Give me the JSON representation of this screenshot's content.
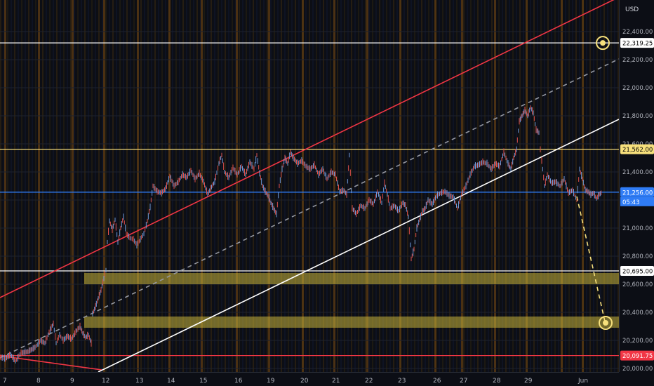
{
  "chart_data": {
    "type": "line",
    "currency": "USD",
    "ylim": [
      20000,
      22560
    ],
    "y_ticks": [
      20000,
      20200,
      20400,
      20600,
      20800,
      21000,
      21200,
      21400,
      21600,
      21800,
      22000,
      22200,
      22400
    ],
    "y_tick_labels": [
      "20,000.00",
      "20,200.00",
      "20,400.00",
      "20,600.00",
      "20,800.00",
      "21,000.00",
      "21,200.00",
      "21,400.00",
      "21,600.00",
      "21,800.00",
      "22,000.00",
      "22,200.00",
      "22,400.00"
    ],
    "x_tick_labels": [
      "7",
      "8",
      "9",
      "12",
      "13",
      "14",
      "15",
      "16",
      "19",
      "20",
      "21",
      "22",
      "23",
      "26",
      "27",
      "28",
      "29",
      "",
      "Jun"
    ],
    "price_labels": [
      {
        "value": 22319.25,
        "text": "22,319.25",
        "color": "#ffffff",
        "bg": "#ffffff",
        "fg": "#000000"
      },
      {
        "value": 21562.0,
        "text": "21,562.00",
        "color": "#f0d878",
        "bg": "#f7e07c",
        "fg": "#000000"
      },
      {
        "value": 21256.0,
        "text": "21,256.00",
        "color": "#2f7cf6",
        "bg": "#2f7cf6",
        "fg": "#ffffff"
      },
      {
        "value": 20695.0,
        "text": "20,695.00",
        "color": "#ffffff",
        "bg": "#ffffff",
        "fg": "#000000"
      },
      {
        "value": 20091.75,
        "text": "20,091.75",
        "color": "#f23645",
        "bg": "#f23645",
        "fg": "#ffffff"
      }
    ],
    "countdown": "05:43",
    "zones": [
      {
        "from": 20600,
        "to": 20680
      },
      {
        "from": 20290,
        "to": 20370
      }
    ],
    "price_series": [
      [
        0,
        20080
      ],
      [
        8,
        20070
      ],
      [
        15,
        20100
      ],
      [
        22,
        20050
      ],
      [
        30,
        20110
      ],
      [
        40,
        20120
      ],
      [
        50,
        20150
      ],
      [
        58,
        20200
      ],
      [
        64,
        20180
      ],
      [
        70,
        20260
      ],
      [
        76,
        20320
      ],
      [
        80,
        20180
      ],
      [
        85,
        20240
      ],
      [
        90,
        20200
      ],
      [
        96,
        20230
      ],
      [
        102,
        20210
      ],
      [
        108,
        20260
      ],
      [
        114,
        20300
      ],
      [
        118,
        20250
      ],
      [
        122,
        20220
      ],
      [
        126,
        20240
      ],
      [
        130,
        20180
      ],
      [
        132,
        20390
      ],
      [
        136,
        20440
      ],
      [
        140,
        20500
      ],
      [
        144,
        20560
      ],
      [
        148,
        20640
      ],
      [
        151,
        20700
      ],
      [
        153,
        20900
      ],
      [
        156,
        21050
      ],
      [
        160,
        20990
      ],
      [
        164,
        21060
      ],
      [
        168,
        20900
      ],
      [
        172,
        21000
      ],
      [
        176,
        21080
      ],
      [
        180,
        20960
      ],
      [
        185,
        20930
      ],
      [
        190,
        20920
      ],
      [
        195,
        20880
      ],
      [
        200,
        20920
      ],
      [
        205,
        20960
      ],
      [
        210,
        21050
      ],
      [
        214,
        21150
      ],
      [
        218,
        21300
      ],
      [
        224,
        21260
      ],
      [
        230,
        21250
      ],
      [
        236,
        21280
      ],
      [
        242,
        21370
      ],
      [
        248,
        21300
      ],
      [
        254,
        21330
      ],
      [
        260,
        21380
      ],
      [
        266,
        21360
      ],
      [
        272,
        21410
      ],
      [
        278,
        21350
      ],
      [
        284,
        21390
      ],
      [
        290,
        21330
      ],
      [
        296,
        21240
      ],
      [
        300,
        21280
      ],
      [
        306,
        21330
      ],
      [
        312,
        21460
      ],
      [
        316,
        21520
      ],
      [
        320,
        21400
      ],
      [
        326,
        21360
      ],
      [
        332,
        21430
      ],
      [
        338,
        21380
      ],
      [
        344,
        21440
      ],
      [
        350,
        21380
      ],
      [
        356,
        21470
      ],
      [
        362,
        21420
      ],
      [
        366,
        21520
      ],
      [
        370,
        21390
      ],
      [
        374,
        21300
      ],
      [
        378,
        21260
      ],
      [
        382,
        21230
      ],
      [
        386,
        21180
      ],
      [
        390,
        21140
      ],
      [
        394,
        21100
      ],
      [
        398,
        21300
      ],
      [
        402,
        21420
      ],
      [
        406,
        21500
      ],
      [
        410,
        21460
      ],
      [
        414,
        21540
      ],
      [
        418,
        21500
      ],
      [
        424,
        21460
      ],
      [
        430,
        21480
      ],
      [
        436,
        21440
      ],
      [
        442,
        21420
      ],
      [
        448,
        21450
      ],
      [
        454,
        21380
      ],
      [
        460,
        21420
      ],
      [
        466,
        21350
      ],
      [
        472,
        21400
      ],
      [
        478,
        21380
      ],
      [
        484,
        21260
      ],
      [
        490,
        21270
      ],
      [
        494,
        21240
      ],
      [
        498,
        21520
      ],
      [
        502,
        21140
      ],
      [
        508,
        21100
      ],
      [
        514,
        21160
      ],
      [
        520,
        21140
      ],
      [
        526,
        21200
      ],
      [
        532,
        21170
      ],
      [
        538,
        21260
      ],
      [
        544,
        21180
      ],
      [
        548,
        21320
      ],
      [
        552,
        21240
      ],
      [
        556,
        21140
      ],
      [
        562,
        21160
      ],
      [
        568,
        21120
      ],
      [
        574,
        21180
      ],
      [
        578,
        21160
      ],
      [
        582,
        21080
      ],
      [
        586,
        20780
      ],
      [
        590,
        20850
      ],
      [
        594,
        21000
      ],
      [
        598,
        21060
      ],
      [
        602,
        21120
      ],
      [
        606,
        21140
      ],
      [
        610,
        21200
      ],
      [
        616,
        21170
      ],
      [
        622,
        21230
      ],
      [
        628,
        21250
      ],
      [
        634,
        21260
      ],
      [
        640,
        21230
      ],
      [
        646,
        21220
      ],
      [
        652,
        21140
      ],
      [
        658,
        21240
      ],
      [
        664,
        21300
      ],
      [
        670,
        21380
      ],
      [
        676,
        21440
      ],
      [
        682,
        21450
      ],
      [
        688,
        21470
      ],
      [
        694,
        21460
      ],
      [
        700,
        21420
      ],
      [
        706,
        21460
      ],
      [
        712,
        21440
      ],
      [
        718,
        21540
      ],
      [
        724,
        21460
      ],
      [
        728,
        21420
      ],
      [
        732,
        21500
      ],
      [
        736,
        21560
      ],
      [
        740,
        21760
      ],
      [
        744,
        21800
      ],
      [
        748,
        21840
      ],
      [
        752,
        21800
      ],
      [
        756,
        21860
      ],
      [
        760,
        21820
      ],
      [
        764,
        21700
      ],
      [
        768,
        21680
      ],
      [
        770,
        21560
      ],
      [
        772,
        21480
      ],
      [
        776,
        21300
      ],
      [
        780,
        21380
      ],
      [
        786,
        21320
      ],
      [
        792,
        21330
      ],
      [
        798,
        21300
      ],
      [
        804,
        21350
      ],
      [
        810,
        21250
      ],
      [
        816,
        21270
      ],
      [
        822,
        21200
      ],
      [
        826,
        21420
      ],
      [
        830,
        21350
      ],
      [
        834,
        21270
      ],
      [
        838,
        21260
      ],
      [
        842,
        21240
      ],
      [
        846,
        21250
      ],
      [
        850,
        21210
      ],
      [
        854,
        21240
      ],
      [
        858,
        21256
      ]
    ],
    "trend_lines": [
      {
        "name": "red-channel-upper",
        "color": "#f23645",
        "points": [
          [
            0,
            424
          ],
          [
            882,
            -4
          ]
        ]
      },
      {
        "name": "red-channel-lower",
        "color": "#f23645",
        "points": [
          [
            0,
            507
          ],
          [
            145,
            527
          ]
        ]
      },
      {
        "name": "white-support",
        "color": "#ffffff",
        "points": [
          [
            140,
            530
          ],
          [
            882,
            170
          ]
        ]
      },
      {
        "name": "grey-dashed-median",
        "color": "#9598a1",
        "points": [
          [
            0,
            510
          ],
          [
            882,
            84
          ]
        ],
        "dashed": true
      },
      {
        "name": "yellow-projection",
        "color": "#f7e07c",
        "points": [
          [
            822,
            280
          ],
          [
            862,
            458
          ]
        ],
        "dashed": true
      }
    ],
    "markers": [
      {
        "name": "target-circle-upper",
        "value": 22319.25
      },
      {
        "name": "target-circle-lower",
        "value": 20330
      }
    ]
  }
}
